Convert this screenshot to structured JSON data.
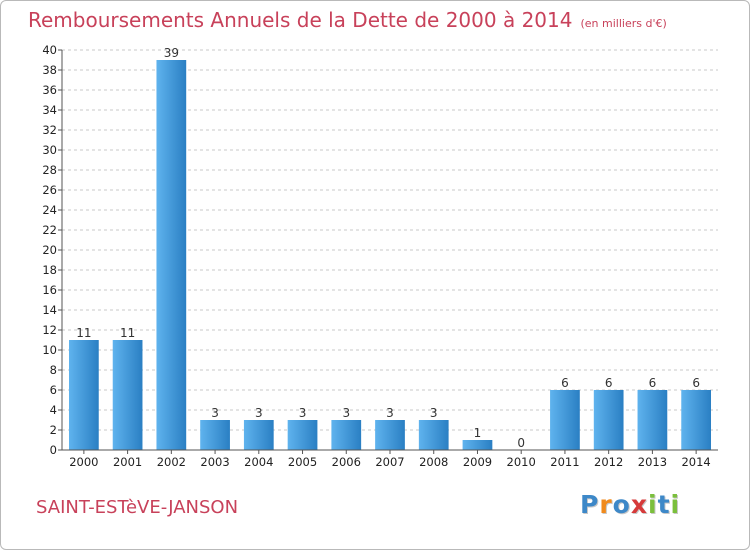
{
  "header": {
    "title": "Remboursements Annuels de la Dette de 2000 à 2014",
    "unit": "(en milliers d'€)"
  },
  "footer": {
    "commune": "SAINT-ESTèVE-JANSON",
    "logo": {
      "letters": [
        "P",
        "r",
        "o",
        "x",
        "i",
        "t",
        "i"
      ]
    }
  },
  "colors": {
    "title": "#c8415a",
    "bar_light": "#5fb3ee",
    "bar_dark": "#2a7fc3",
    "grid": "#c8c8c8",
    "logo": [
      "#3d88c8",
      "#f08a1c",
      "#3d88c8",
      "#d63a3a",
      "#7bbf3c",
      "#3d88c8",
      "#7bbf3c"
    ]
  },
  "chart_data": {
    "type": "bar",
    "categories": [
      "2000",
      "2001",
      "2002",
      "2003",
      "2004",
      "2005",
      "2006",
      "2007",
      "2008",
      "2009",
      "2010",
      "2011",
      "2012",
      "2013",
      "2014"
    ],
    "values": [
      11,
      11,
      39,
      3,
      3,
      3,
      3,
      3,
      3,
      1,
      0,
      6,
      6,
      6,
      6
    ],
    "ylim": [
      0,
      40
    ],
    "yticks": [
      0,
      2,
      4,
      6,
      8,
      10,
      12,
      14,
      16,
      18,
      20,
      22,
      24,
      26,
      28,
      30,
      32,
      34,
      36,
      38,
      40
    ],
    "grid": true,
    "data_labels": true
  }
}
